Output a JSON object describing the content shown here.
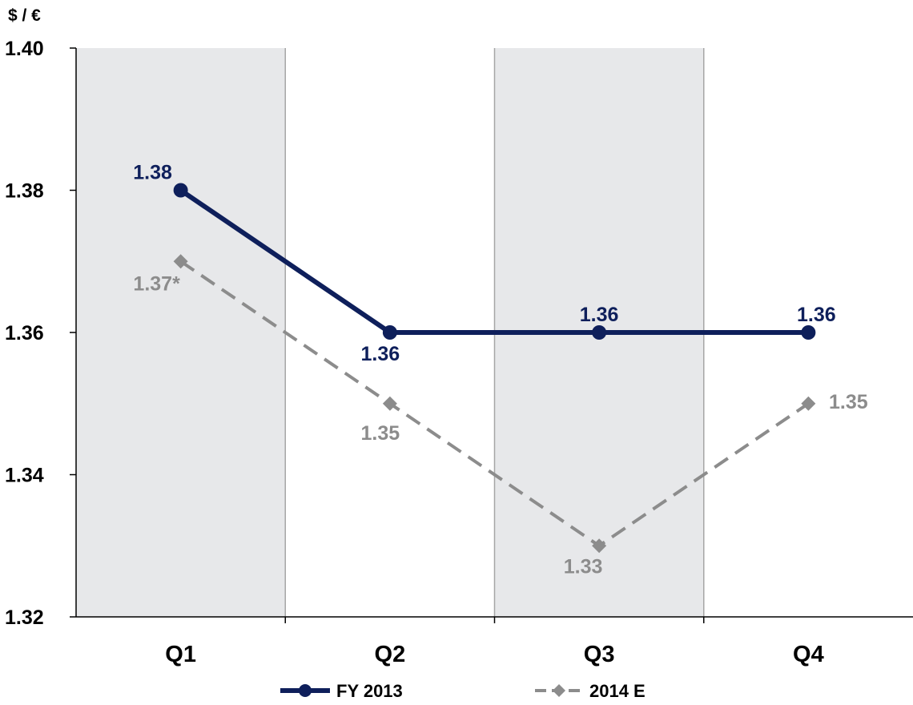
{
  "chart_data": {
    "type": "line",
    "unit_label": "$ / €",
    "categories": [
      "Q1",
      "Q2",
      "Q3",
      "Q4"
    ],
    "ylim": [
      1.32,
      1.4
    ],
    "yticks": [
      "1.32",
      "1.34",
      "1.36",
      "1.38",
      "1.40"
    ],
    "shaded_columns": [
      "Q1",
      "Q3"
    ],
    "legend_position": "bottom",
    "series": [
      {
        "name": "FY 2013",
        "values": [
          1.38,
          1.36,
          1.36,
          1.36
        ],
        "labels": [
          "1.38",
          "1.36",
          "1.36",
          "1.36"
        ],
        "color": "#0e1f5b",
        "style": "solid",
        "marker": "circle"
      },
      {
        "name": "2014 E",
        "values": [
          1.37,
          1.35,
          1.33,
          1.35
        ],
        "labels": [
          "1.37*",
          "1.35",
          "1.33",
          "1.35"
        ],
        "color": "#8c8c8c",
        "style": "dashed",
        "marker": "diamond"
      }
    ],
    "colors": {
      "shade": "#e7e8ea",
      "grid": "#a6a6a6",
      "axis": "#000000"
    }
  }
}
